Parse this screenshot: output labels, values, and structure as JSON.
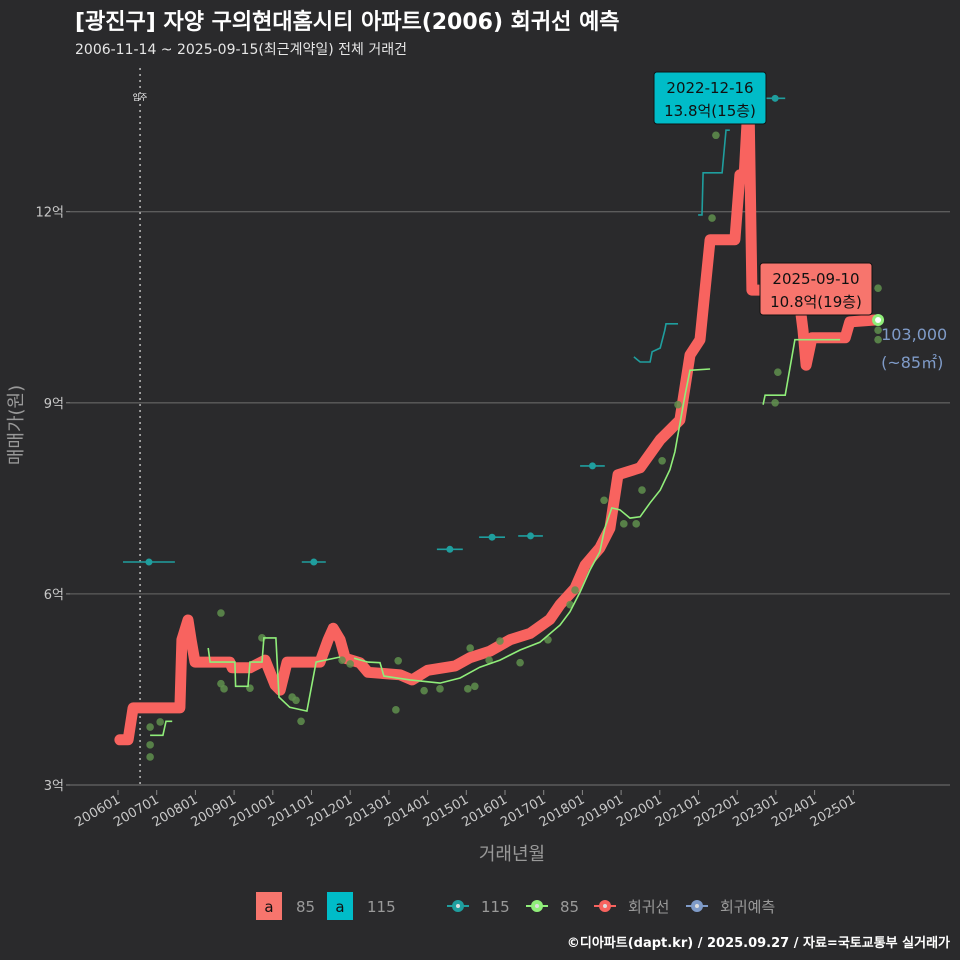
{
  "title": "[광진구] 자양 구의현대홈시티 아파트(2006) 회귀선 예측",
  "subtitle": "2006-11-14 ~ 2025-09-15(최근계약일) 전체 거래건",
  "credit": "©디아파트(dapt.kr) / 2025.09.27 / 자료=국토교통부 실거래가",
  "chart_data": {
    "type": "line",
    "xlabel": "거래년월",
    "ylabel": "매매가(원)",
    "xlim": [
      2005.8,
      2027.0
    ],
    "ylim": [
      2.95,
      14.9
    ],
    "grid": true,
    "x_ticks": [
      "200601",
      "200701",
      "200801",
      "200901",
      "201001",
      "201101",
      "201201",
      "201301",
      "201401",
      "201501",
      "201601",
      "201701",
      "201801",
      "201901",
      "202001",
      "202101",
      "202201",
      "202301",
      "202401",
      "202501"
    ],
    "y_ticks": [
      {
        "value": 3,
        "label": "3억"
      },
      {
        "value": 6,
        "label": "6억"
      },
      {
        "value": 9,
        "label": "9억"
      },
      {
        "value": 12,
        "label": "12억"
      }
    ],
    "move_in": {
      "x": 2006.57,
      "label": "입주"
    },
    "colors": {
      "regression": "#f8635f",
      "area85": "#90ee7a",
      "area115": "#1f9e9e",
      "forecast": "#7f9bc8",
      "label115": "#00bcc8",
      "label_reg": "#f7756d"
    },
    "regression": [
      [
        2006.05,
        3.71
      ],
      [
        2006.26,
        3.71
      ],
      [
        2006.39,
        4.21
      ],
      [
        2007.6,
        4.21
      ],
      [
        2007.65,
        5.28
      ],
      [
        2007.81,
        5.59
      ],
      [
        2007.89,
        5.28
      ],
      [
        2007.99,
        4.93
      ],
      [
        2008.89,
        4.93
      ],
      [
        2008.95,
        4.84
      ],
      [
        2009.41,
        4.84
      ],
      [
        2009.8,
        4.96
      ],
      [
        2010.06,
        4.57
      ],
      [
        2010.19,
        4.49
      ],
      [
        2010.37,
        4.93
      ],
      [
        2011.22,
        4.93
      ],
      [
        2011.43,
        5.28
      ],
      [
        2011.56,
        5.46
      ],
      [
        2011.74,
        5.28
      ],
      [
        2011.87,
        4.99
      ],
      [
        2012.25,
        4.92
      ],
      [
        2012.46,
        4.77
      ],
      [
        2013.29,
        4.73
      ],
      [
        2013.6,
        4.65
      ],
      [
        2014.0,
        4.8
      ],
      [
        2014.71,
        4.87
      ],
      [
        2015.1,
        5.0
      ],
      [
        2015.61,
        5.1
      ],
      [
        2016.13,
        5.28
      ],
      [
        2016.65,
        5.38
      ],
      [
        2017.16,
        5.6
      ],
      [
        2017.42,
        5.83
      ],
      [
        2017.81,
        6.09
      ],
      [
        2018.07,
        6.45
      ],
      [
        2018.45,
        6.72
      ],
      [
        2018.71,
        7.03
      ],
      [
        2018.92,
        7.87
      ],
      [
        2019.49,
        7.98
      ],
      [
        2020.01,
        8.42
      ],
      [
        2020.52,
        8.73
      ],
      [
        2020.78,
        9.75
      ],
      [
        2021.04,
        9.99
      ],
      [
        2021.3,
        11.56
      ],
      [
        2021.94,
        11.56
      ],
      [
        2022.07,
        12.58
      ],
      [
        2022.18,
        12.58
      ],
      [
        2022.3,
        13.91
      ],
      [
        2022.38,
        10.77
      ],
      [
        2023.57,
        10.77
      ],
      [
        2023.7,
        10.14
      ],
      [
        2023.78,
        9.59
      ],
      [
        2023.93,
        10.02
      ],
      [
        2024.79,
        10.02
      ],
      [
        2024.91,
        10.27
      ],
      [
        2025.56,
        10.3
      ]
    ],
    "series": [
      {
        "name": "85",
        "segments": [
          [
            [
              2006.83,
              3.78
            ],
            [
              2007.16,
              3.78
            ],
            [
              2007.24,
              4.0
            ],
            [
              2007.4,
              4.0
            ]
          ],
          [
            [
              2008.33,
              5.15
            ],
            [
              2008.38,
              4.93
            ],
            [
              2009.02,
              4.93
            ],
            [
              2009.04,
              4.55
            ],
            [
              2009.36,
              4.55
            ],
            [
              2009.41,
              4.93
            ],
            [
              2009.72,
              4.93
            ],
            [
              2009.77,
              5.31
            ],
            [
              2010.08,
              5.31
            ],
            [
              2010.16,
              4.38
            ],
            [
              2010.44,
              4.22
            ],
            [
              2010.88,
              4.16
            ],
            [
              2011.12,
              4.93
            ],
            [
              2011.74,
              5.01
            ]
          ],
          [
            [
              2012.1,
              4.99
            ],
            [
              2012.46,
              4.93
            ],
            [
              2012.77,
              4.92
            ],
            [
              2012.87,
              4.71
            ],
            [
              2013.55,
              4.65
            ],
            [
              2014.32,
              4.6
            ],
            [
              2014.84,
              4.68
            ],
            [
              2015.35,
              4.85
            ],
            [
              2015.87,
              4.96
            ],
            [
              2016.39,
              5.12
            ],
            [
              2016.9,
              5.24
            ],
            [
              2017.42,
              5.51
            ],
            [
              2017.68,
              5.72
            ],
            [
              2017.94,
              6.03
            ],
            [
              2018.2,
              6.38
            ],
            [
              2018.45,
              6.66
            ],
            [
              2018.58,
              7.03
            ],
            [
              2018.76,
              7.35
            ],
            [
              2018.97,
              7.32
            ],
            [
              2019.23,
              7.19
            ],
            [
              2019.49,
              7.21
            ],
            [
              2019.75,
              7.43
            ],
            [
              2020.01,
              7.63
            ],
            [
              2020.26,
              7.95
            ],
            [
              2020.39,
              8.23
            ],
            [
              2020.65,
              9.12
            ],
            [
              2020.78,
              9.51
            ],
            [
              2021.3,
              9.53
            ]
          ],
          [
            [
              2022.67,
              8.97
            ],
            [
              2022.72,
              9.12
            ],
            [
              2023.24,
              9.12
            ],
            [
              2023.49,
              9.99
            ],
            [
              2024.66,
              9.99
            ]
          ]
        ]
      },
      {
        "name": "115",
        "segments": [
          [
            [
              2006.13,
              6.5
            ],
            [
              2007.47,
              6.5
            ]
          ],
          [
            [
              2010.75,
              6.5
            ],
            [
              2011.37,
              6.5
            ]
          ],
          [
            [
              2014.24,
              6.7
            ],
            [
              2014.91,
              6.7
            ]
          ],
          [
            [
              2015.33,
              6.89
            ],
            [
              2016.0,
              6.89
            ]
          ],
          [
            [
              2016.34,
              6.91
            ],
            [
              2016.98,
              6.91
            ]
          ],
          [
            [
              2017.94,
              8.01
            ],
            [
              2018.58,
              8.01
            ]
          ],
          [
            [
              2019.33,
              9.72
            ],
            [
              2019.49,
              9.64
            ],
            [
              2019.75,
              9.64
            ],
            [
              2019.8,
              9.8
            ],
            [
              2020.01,
              9.86
            ],
            [
              2020.13,
              10.14
            ],
            [
              2020.16,
              10.24
            ],
            [
              2020.47,
              10.24
            ]
          ],
          [
            [
              2020.99,
              11.95
            ],
            [
              2021.09,
              11.95
            ],
            [
              2021.12,
              12.61
            ],
            [
              2021.61,
              12.61
            ],
            [
              2021.71,
              13.28
            ],
            [
              2021.81,
              13.28
            ]
          ],
          [
            [
              2022.72,
              13.78
            ],
            [
              2023.24,
              13.78
            ]
          ]
        ]
      }
    ],
    "points": [
      [
        2006.83,
        3.91
      ],
      [
        2006.83,
        3.63
      ],
      [
        2006.83,
        3.44
      ],
      [
        2007.09,
        3.99
      ],
      [
        2008.66,
        5.7
      ],
      [
        2008.66,
        4.59
      ],
      [
        2008.74,
        4.51
      ],
      [
        2009.41,
        4.52
      ],
      [
        2009.72,
        5.31
      ],
      [
        2010.5,
        4.38
      ],
      [
        2010.6,
        4.33
      ],
      [
        2010.73,
        4.0
      ],
      [
        2011.79,
        4.96
      ],
      [
        2012.0,
        4.9
      ],
      [
        2013.18,
        4.18
      ],
      [
        2013.24,
        4.95
      ],
      [
        2013.91,
        4.48
      ],
      [
        2014.32,
        4.51
      ],
      [
        2015.04,
        4.51
      ],
      [
        2015.22,
        4.55
      ],
      [
        2015.1,
        5.15
      ],
      [
        2015.59,
        4.96
      ],
      [
        2015.87,
        5.26
      ],
      [
        2016.39,
        4.92
      ],
      [
        2017.11,
        5.28
      ],
      [
        2017.68,
        5.83
      ],
      [
        2017.81,
        6.06
      ],
      [
        2018.56,
        7.47
      ],
      [
        2019.07,
        7.1
      ],
      [
        2019.39,
        7.1
      ],
      [
        2019.54,
        7.63
      ],
      [
        2020.06,
        8.09
      ],
      [
        2020.47,
        8.97
      ],
      [
        2021.35,
        11.9
      ],
      [
        2021.45,
        13.2
      ],
      [
        2022.98,
        9.0
      ],
      [
        2023.05,
        9.48
      ],
      [
        2025.64,
        10.8
      ],
      [
        2025.64,
        10.14
      ],
      [
        2025.64,
        9.99
      ]
    ],
    "forecast_point": {
      "x": 2025.64,
      "y": 10.3,
      "label": "103,000",
      "sublabel": "(~85㎡)"
    },
    "annotations": [
      {
        "date": "2022-12-16",
        "text": "13.8억(15층)",
        "x": 2022.3,
        "y": 13.91,
        "color": "label115"
      },
      {
        "date": "2025-09-10",
        "text": "10.8억(19층)",
        "x": 2023.95,
        "y": 10.77,
        "color": "label_reg"
      }
    ],
    "legend": {
      "area_keys": [
        {
          "glyph": "a",
          "label": "85",
          "color": "#f7756d"
        },
        {
          "glyph": "a",
          "label": "115",
          "color": "#00bcc8"
        }
      ],
      "line_keys": [
        {
          "label": "115",
          "color": "#1f9e9e"
        },
        {
          "label": "85",
          "color": "#90ee7a"
        },
        {
          "label": "회귀선",
          "color": "#f8635f"
        },
        {
          "label": "회귀예측",
          "color": "#7f9bc8"
        }
      ],
      "placement": "bottom"
    }
  }
}
